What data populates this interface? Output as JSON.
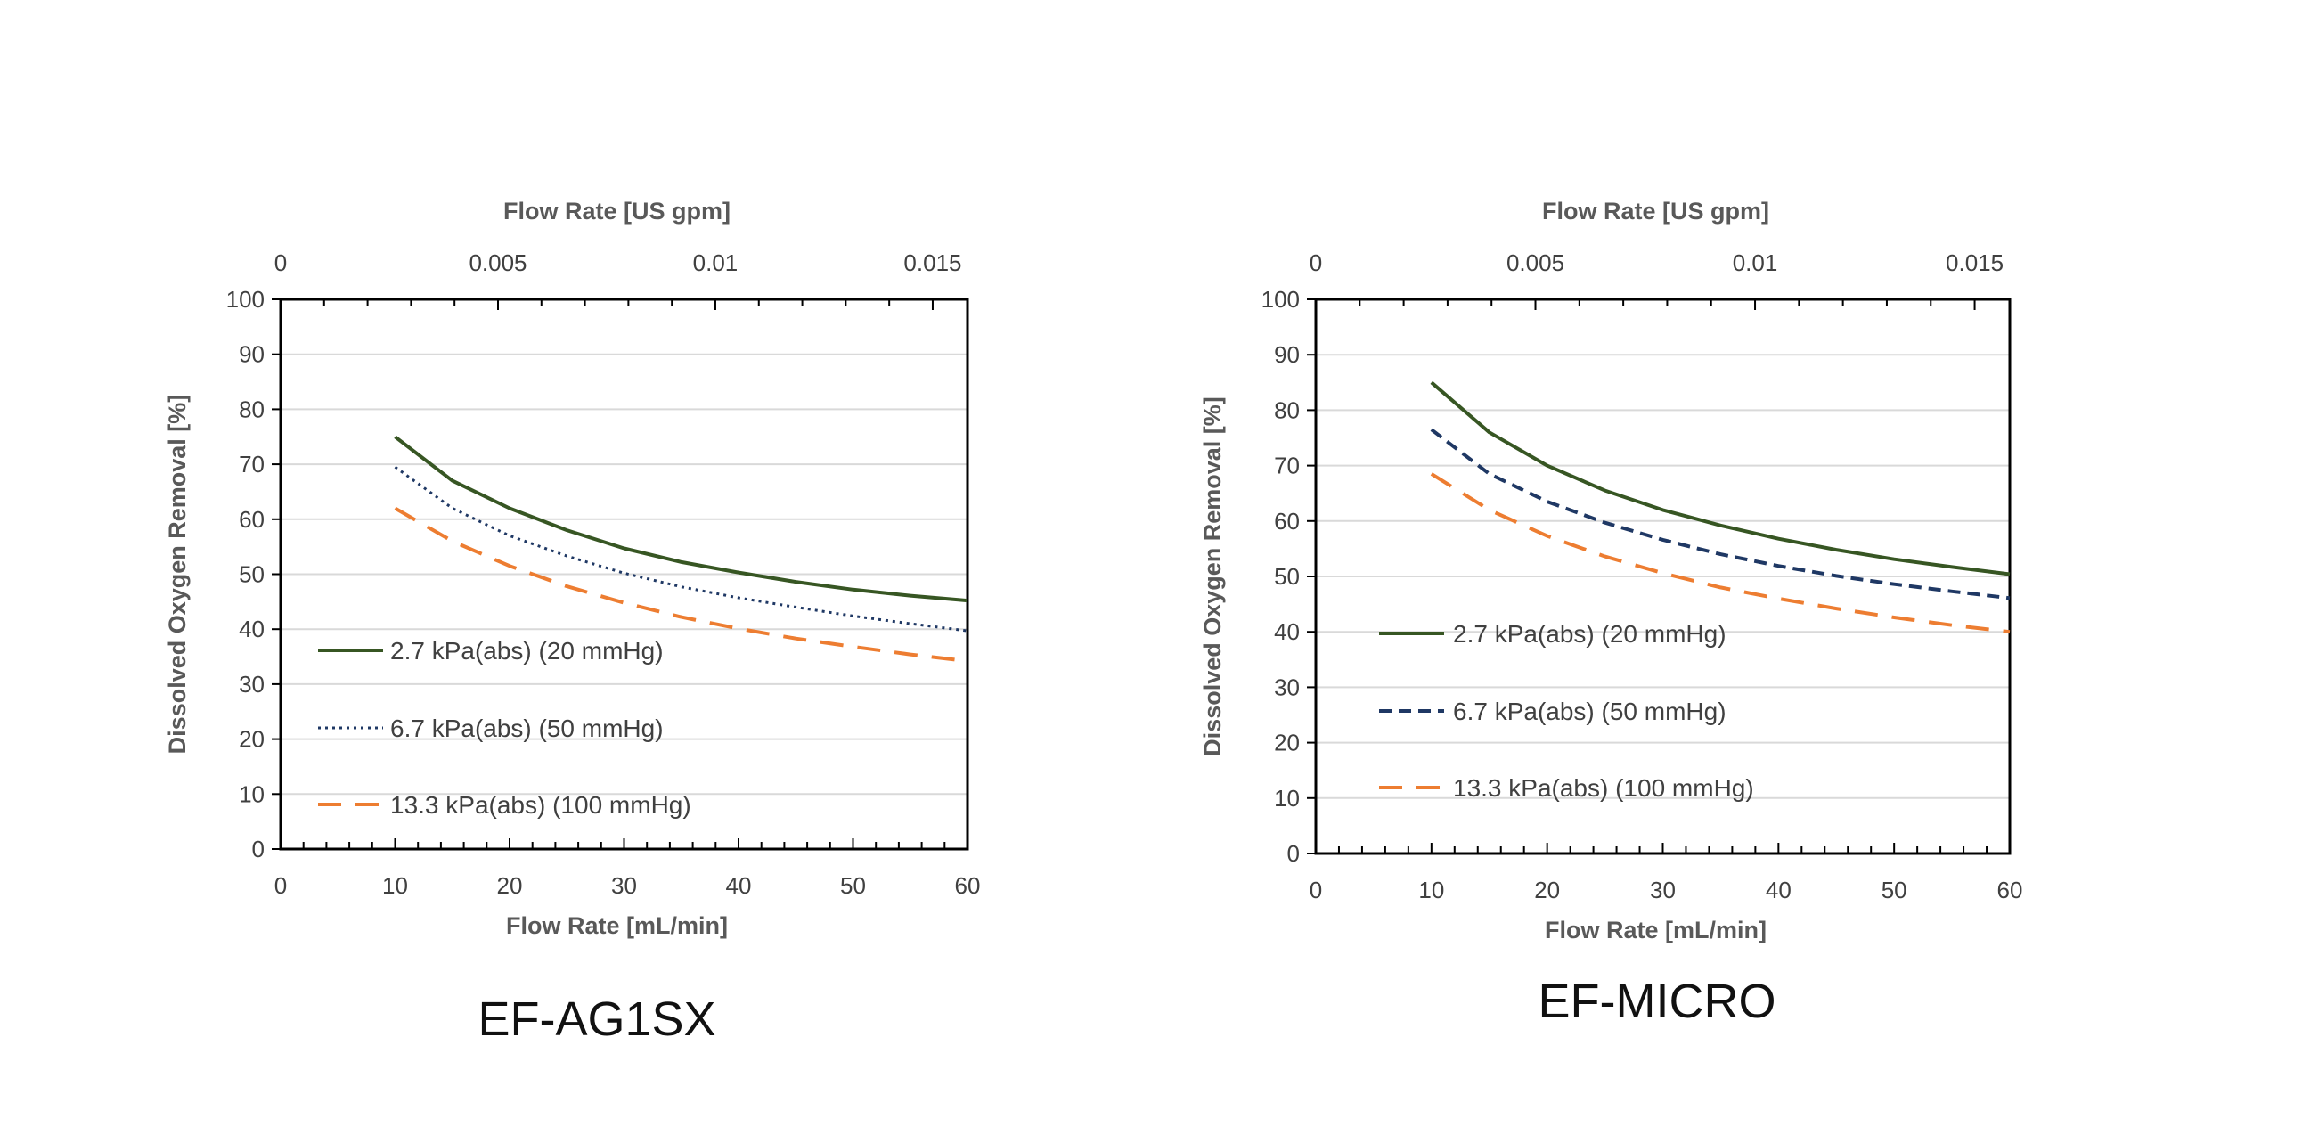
{
  "colors": {
    "series_2_7": "#375623",
    "series_6_7": "#1f3864",
    "series_13_3": "#ed7d31",
    "gridline": "#d9d9d9",
    "axis": "#000000"
  },
  "chart_data": [
    {
      "type": "line",
      "caption": "EF-AG1SX",
      "xlabel": "Flow Rate [mL/min]",
      "x2label": "Flow Rate [US gpm]",
      "ylabel": "Dissolved Oxygen Removal [%]",
      "xlim": [
        0,
        60
      ],
      "ylim": [
        0,
        100
      ],
      "x2lim": [
        0,
        0.0158
      ],
      "xticks": [
        "0",
        "10",
        "20",
        "30",
        "40",
        "50",
        "60"
      ],
      "yticks": [
        "0",
        "10",
        "20",
        "30",
        "40",
        "50",
        "60",
        "70",
        "80",
        "90",
        "100"
      ],
      "x2ticks": [
        "0",
        "0.005",
        "0.01",
        "0.015"
      ],
      "grid": true,
      "legend_position": "lower-left inside",
      "series": [
        {
          "name": "2.7 kPa(abs) (20 mmHg)",
          "style": "solid",
          "x": [
            10,
            15,
            20,
            25,
            30,
            35,
            40,
            45,
            50,
            55,
            60
          ],
          "y": [
            75,
            67,
            62,
            58,
            54.7,
            52.2,
            50.3,
            48.6,
            47.2,
            46.1,
            45.2
          ]
        },
        {
          "name": "6.7 kPa(abs) (50 mmHg)",
          "style": "dotted",
          "x": [
            10,
            15,
            20,
            25,
            30,
            35,
            40,
            45,
            50,
            55,
            60
          ],
          "y": [
            69.5,
            62,
            57,
            53.3,
            50.2,
            47.7,
            45.7,
            44,
            42.4,
            41,
            39.7
          ]
        },
        {
          "name": "13.3 kPa(abs) (100 mmHg)",
          "style": "dashed",
          "x": [
            10,
            15,
            20,
            25,
            30,
            35,
            40,
            45,
            50,
            55,
            60
          ],
          "y": [
            62,
            56,
            51.5,
            47.8,
            44.8,
            42.2,
            40.1,
            38.3,
            36.8,
            35.4,
            34.2
          ]
        }
      ]
    },
    {
      "type": "line",
      "caption": "EF-MICRO",
      "xlabel": "Flow Rate [mL/min]",
      "x2label": "Flow Rate [US gpm]",
      "ylabel": "Dissolved Oxygen Removal [%]",
      "xlim": [
        0,
        60
      ],
      "ylim": [
        0,
        100
      ],
      "x2lim": [
        0,
        0.0158
      ],
      "xticks": [
        "0",
        "10",
        "20",
        "30",
        "40",
        "50",
        "60"
      ],
      "yticks": [
        "0",
        "10",
        "20",
        "30",
        "40",
        "50",
        "60",
        "70",
        "80",
        "90",
        "100"
      ],
      "x2ticks": [
        "0",
        "0.005",
        "0.01",
        "0.015"
      ],
      "grid": true,
      "legend_position": "lower-left inside",
      "series": [
        {
          "name": "2.7 kPa(abs) (20 mmHg)",
          "style": "solid",
          "x": [
            10,
            15,
            20,
            25,
            30,
            35,
            40,
            45,
            50,
            55,
            60
          ],
          "y": [
            85,
            76,
            70,
            65.5,
            62,
            59.2,
            56.8,
            54.8,
            53.1,
            51.7,
            50.4
          ]
        },
        {
          "name": "6.7 kPa(abs) (50 mmHg)",
          "style": "dashed-short",
          "x": [
            10,
            15,
            20,
            25,
            30,
            35,
            40,
            45,
            50,
            55,
            60
          ],
          "y": [
            76.5,
            68.5,
            63.5,
            59.7,
            56.6,
            54,
            51.9,
            50.1,
            48.6,
            47.3,
            46.1
          ]
        },
        {
          "name": "13.3 kPa(abs) (100 mmHg)",
          "style": "dashed",
          "x": [
            10,
            15,
            20,
            25,
            30,
            35,
            40,
            45,
            50,
            55,
            60
          ],
          "y": [
            68.5,
            62,
            57.3,
            53.6,
            50.6,
            48,
            46,
            44.2,
            42.6,
            41.2,
            40
          ]
        }
      ]
    }
  ]
}
